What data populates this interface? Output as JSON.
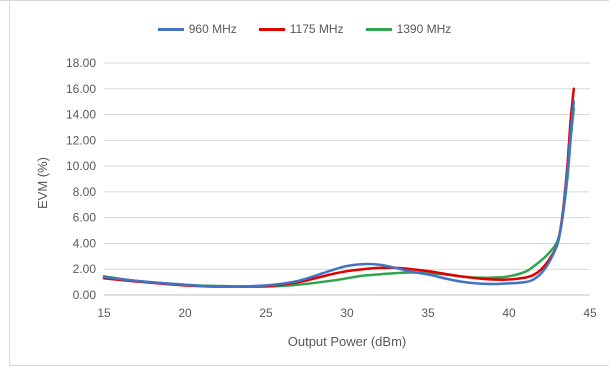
{
  "chart_data": {
    "type": "line",
    "xlabel": "Output Power (dBm)",
    "ylabel": "EVM (%)",
    "xlim": [
      15,
      45
    ],
    "ylim": [
      0,
      18
    ],
    "x_ticks": [
      "15",
      "20",
      "25",
      "30",
      "35",
      "40",
      "45"
    ],
    "y_ticks": [
      "0.00",
      "2.00",
      "4.00",
      "6.00",
      "8.00",
      "10.00",
      "12.00",
      "14.00",
      "16.00",
      "18.00"
    ],
    "grid": "horizontal",
    "legend": "top",
    "series": [
      {
        "name": "960 MHz",
        "color": "#4472c4",
        "points": [
          [
            15,
            1.4
          ],
          [
            17,
            1.1
          ],
          [
            20,
            0.8
          ],
          [
            22,
            0.65
          ],
          [
            25,
            0.75
          ],
          [
            27,
            1.1
          ],
          [
            29,
            1.9
          ],
          [
            30,
            2.25
          ],
          [
            31,
            2.4
          ],
          [
            32,
            2.35
          ],
          [
            33,
            2.1
          ],
          [
            34,
            1.8
          ],
          [
            35,
            1.6
          ],
          [
            36,
            1.3
          ],
          [
            37,
            1.05
          ],
          [
            38,
            0.9
          ],
          [
            39,
            0.85
          ],
          [
            40,
            0.9
          ],
          [
            41,
            1.0
          ],
          [
            41.5,
            1.2
          ],
          [
            42,
            1.7
          ],
          [
            42.5,
            2.6
          ],
          [
            43,
            4.0
          ],
          [
            43.3,
            6.0
          ],
          [
            43.6,
            9.5
          ],
          [
            43.8,
            12.5
          ],
          [
            44,
            15.0
          ]
        ]
      },
      {
        "name": "1175 MHz",
        "color": "#e00000",
        "points": [
          [
            15,
            1.3
          ],
          [
            17,
            1.05
          ],
          [
            20,
            0.75
          ],
          [
            22,
            0.65
          ],
          [
            25,
            0.7
          ],
          [
            27,
            1.0
          ],
          [
            29,
            1.6
          ],
          [
            30,
            1.85
          ],
          [
            31,
            2.0
          ],
          [
            32,
            2.1
          ],
          [
            33,
            2.1
          ],
          [
            34,
            2.0
          ],
          [
            35,
            1.85
          ],
          [
            36,
            1.65
          ],
          [
            37,
            1.45
          ],
          [
            38,
            1.3
          ],
          [
            39,
            1.2
          ],
          [
            40,
            1.2
          ],
          [
            41,
            1.35
          ],
          [
            41.5,
            1.55
          ],
          [
            42,
            2.0
          ],
          [
            42.5,
            2.8
          ],
          [
            43,
            4.0
          ],
          [
            43.3,
            6.2
          ],
          [
            43.6,
            10.0
          ],
          [
            43.8,
            13.5
          ],
          [
            44,
            16.0
          ]
        ]
      },
      {
        "name": "1390 MHz",
        "color": "#2ea44f",
        "points": [
          [
            15,
            1.45
          ],
          [
            17,
            1.1
          ],
          [
            20,
            0.8
          ],
          [
            22,
            0.7
          ],
          [
            25,
            0.65
          ],
          [
            27,
            0.8
          ],
          [
            29,
            1.1
          ],
          [
            30,
            1.3
          ],
          [
            31,
            1.5
          ],
          [
            32,
            1.6
          ],
          [
            33,
            1.7
          ],
          [
            34,
            1.75
          ],
          [
            35,
            1.7
          ],
          [
            36,
            1.6
          ],
          [
            37,
            1.45
          ],
          [
            38,
            1.35
          ],
          [
            39,
            1.35
          ],
          [
            40,
            1.45
          ],
          [
            41,
            1.8
          ],
          [
            41.5,
            2.2
          ],
          [
            42,
            2.7
          ],
          [
            42.5,
            3.3
          ],
          [
            43,
            4.2
          ],
          [
            43.3,
            6.0
          ],
          [
            43.6,
            9.0
          ],
          [
            43.8,
            12.0
          ],
          [
            44,
            14.5
          ]
        ]
      }
    ]
  }
}
